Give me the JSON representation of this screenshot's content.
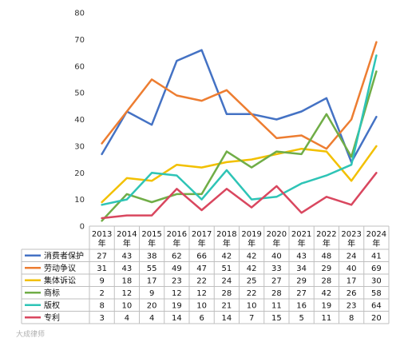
{
  "chart_data": {
    "type": "line",
    "title": "",
    "xlabel": "",
    "ylabel": "",
    "ylim": [
      0,
      80
    ],
    "yticks": [
      0,
      10,
      20,
      30,
      40,
      50,
      60,
      70,
      80
    ],
    "grid": "none",
    "legend": "data-table-below",
    "categories": [
      [
        "2013",
        "年"
      ],
      [
        "2014",
        "年"
      ],
      [
        "2015",
        "年"
      ],
      [
        "2016",
        "年"
      ],
      [
        "2017",
        "年"
      ],
      [
        "2018",
        "年"
      ],
      [
        "2019",
        "年"
      ],
      [
        "2020",
        "年"
      ],
      [
        "2021",
        "年"
      ],
      [
        "2022",
        "年"
      ],
      [
        "2023",
        "年"
      ],
      [
        "2024",
        "年"
      ]
    ],
    "series": [
      {
        "name": "消费者保护",
        "color": "#4472c4",
        "values": [
          27,
          43,
          38,
          62,
          66,
          42,
          42,
          40,
          43,
          48,
          24,
          41
        ]
      },
      {
        "name": "劳动争议",
        "color": "#ed7d31",
        "values": [
          31,
          43,
          55,
          49,
          47,
          51,
          42,
          33,
          34,
          29,
          40,
          69
        ]
      },
      {
        "name": "集体诉讼",
        "color": "#f2c000",
        "values": [
          9,
          18,
          17,
          23,
          22,
          24,
          25,
          27,
          29,
          28,
          17,
          30
        ]
      },
      {
        "name": "商标",
        "color": "#70ad47",
        "values": [
          2,
          12,
          9,
          12,
          12,
          28,
          22,
          28,
          27,
          42,
          26,
          58
        ]
      },
      {
        "name": "版权",
        "color": "#2ec4b6",
        "values": [
          8,
          10,
          20,
          19,
          10,
          21,
          10,
          11,
          16,
          19,
          23,
          64
        ]
      },
      {
        "name": "专利",
        "color": "#d9475f",
        "values": [
          3,
          4,
          4,
          14,
          6,
          14,
          7,
          15,
          5,
          11,
          8,
          20
        ]
      }
    ]
  },
  "watermark": "大成律师"
}
